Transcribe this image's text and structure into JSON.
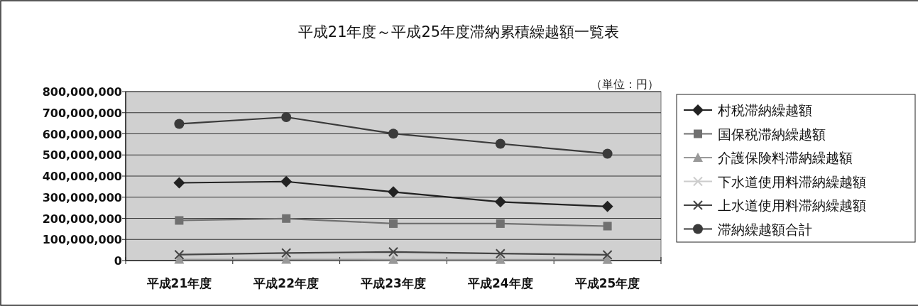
{
  "chart_data": {
    "type": "line",
    "title": "平成21年度～平成25年度滞納累積繰越額一覧表",
    "annotations": [
      "（単位：円）"
    ],
    "categories": [
      "平成21年度",
      "平成22年度",
      "平成23年度",
      "平成24年度",
      "平成25年度"
    ],
    "ylim": [
      0,
      800000000
    ],
    "yticks": [
      {
        "value": 0,
        "label": "0"
      },
      {
        "value": 100000000,
        "label": "100,000,000"
      },
      {
        "value": 200000000,
        "label": "200,000,000"
      },
      {
        "value": 300000000,
        "label": "300,000,000"
      },
      {
        "value": 400000000,
        "label": "400,000,000"
      },
      {
        "value": 500000000,
        "label": "500,000,000"
      },
      {
        "value": 600000000,
        "label": "600,000,000"
      },
      {
        "value": 700000000,
        "label": "700,000,000"
      },
      {
        "value": 800000000,
        "label": "800,000,000"
      }
    ],
    "grid": "y",
    "legend": "right",
    "series": [
      {
        "name": "村税滞納繰越額",
        "color": "#222222",
        "marker": "diamond",
        "values": [
          368000000,
          374000000,
          325000000,
          278000000,
          256000000
        ]
      },
      {
        "name": "国保税滞納繰越額",
        "color": "#707070",
        "marker": "square",
        "values": [
          190000000,
          199000000,
          175000000,
          175000000,
          163000000
        ]
      },
      {
        "name": "介護保険料滞納繰越額",
        "color": "#999999",
        "marker": "triangle",
        "values": [
          5000000,
          5000000,
          4000000,
          4000000,
          4000000
        ]
      },
      {
        "name": "下水道使用料滞納繰越額",
        "color": "#cccccc",
        "marker": "cross",
        "values": [
          null,
          null,
          null,
          null,
          null
        ]
      },
      {
        "name": "上水道使用料滞納繰越額",
        "color": "#444444",
        "marker": "cross",
        "values": [
          28000000,
          36000000,
          41000000,
          33000000,
          27000000
        ]
      },
      {
        "name": "滞納繰越額合計",
        "color": "#3a3a3a",
        "marker": "circle",
        "values": [
          647000000,
          679000000,
          601000000,
          553000000,
          506000000
        ]
      }
    ]
  }
}
